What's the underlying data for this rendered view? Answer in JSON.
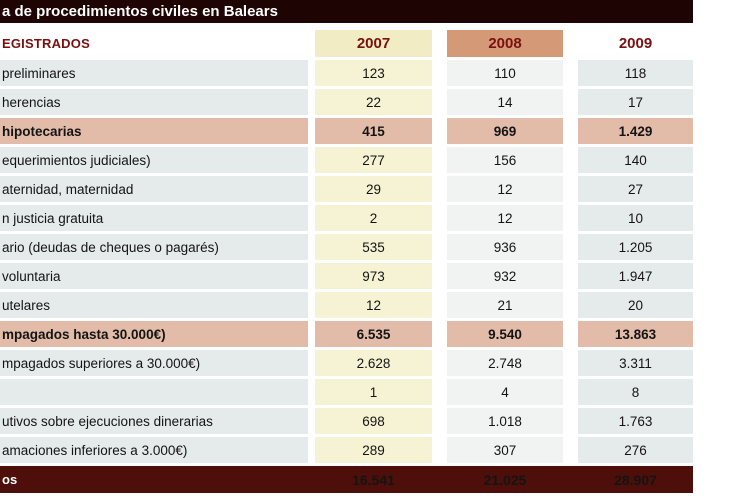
{
  "title": "a de procedimientos civiles en Balears",
  "header_label": "EGISTRADOS",
  "chart_data": {
    "type": "table",
    "title": "a de procedimientos civiles en Balears",
    "columns": [
      "2007",
      "2008",
      "2009"
    ],
    "rows": [
      {
        "label": "preliminares",
        "values": [
          "123",
          "110",
          "118"
        ],
        "highlight": false
      },
      {
        "label": "herencias",
        "values": [
          "22",
          "14",
          "17"
        ],
        "highlight": false
      },
      {
        "label": "hipotecarias",
        "values": [
          "415",
          "969",
          "1.429"
        ],
        "highlight": true
      },
      {
        "label": "equerimientos judiciales)",
        "values": [
          "277",
          "156",
          "140"
        ],
        "highlight": false
      },
      {
        "label": "aternidad, maternidad",
        "values": [
          "29",
          "12",
          "27"
        ],
        "highlight": false
      },
      {
        "label": "n justicia gratuita",
        "values": [
          "2",
          "12",
          "10"
        ],
        "highlight": false
      },
      {
        "label": "ario (deudas de cheques o pagarés)",
        "values": [
          "535",
          "936",
          "1.205"
        ],
        "highlight": false
      },
      {
        "label": "voluntaria",
        "values": [
          "973",
          "932",
          "1.947"
        ],
        "highlight": false
      },
      {
        "label": "utelares",
        "values": [
          "12",
          "21",
          "20"
        ],
        "highlight": false
      },
      {
        "label": "mpagados hasta 30.000€)",
        "values": [
          "6.535",
          "9.540",
          "13.863"
        ],
        "highlight": true
      },
      {
        "label": "mpagados superiores a 30.000€)",
        "values": [
          "2.628",
          "2.748",
          "3.311"
        ],
        "highlight": false
      },
      {
        "label": "",
        "values": [
          "1",
          "4",
          "8"
        ],
        "highlight": false
      },
      {
        "label": "utivos sobre ejecuciones dinerarias",
        "values": [
          "698",
          "1.018",
          "1.763"
        ],
        "highlight": false
      },
      {
        "label": "amaciones inferiores a 3.000€)",
        "values": [
          "289",
          "307",
          "276"
        ],
        "highlight": false
      }
    ],
    "total": {
      "label": "os",
      "values": [
        "16.541",
        "21.025",
        "28.907"
      ]
    }
  },
  "colors": {
    "title_bg": "#1f0404",
    "total_bg": "#4e0f0a",
    "highlight_bg": "#e2bca8",
    "col2007_bg": "#f6f3d4",
    "col2008_bg": "#f1f3f3",
    "col2009_bg": "#e5eaea",
    "row_bg": "#e5eaea",
    "header2007_bg": "#f1ecc3",
    "header2008_bg": "#d49976",
    "year_text": "#7a1010"
  }
}
